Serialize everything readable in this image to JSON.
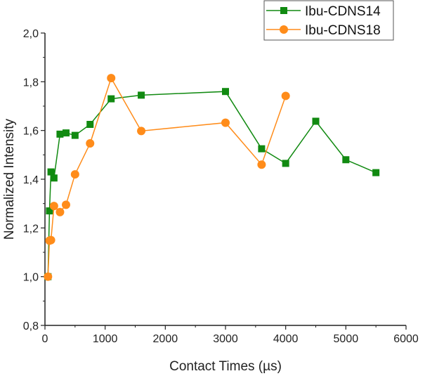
{
  "chart_data": {
    "type": "line",
    "title": "",
    "xlabel": "Contact Times (µs)",
    "ylabel": "Normalized Intensity",
    "xlim": [
      0,
      6000
    ],
    "ylim": [
      0.8,
      2.0
    ],
    "xticks": [
      0,
      1000,
      2000,
      3000,
      4000,
      5000,
      6000
    ],
    "xtick_labels": [
      "0",
      "1000",
      "2000",
      "3000",
      "4000",
      "5000",
      "6000"
    ],
    "yticks": [
      0.8,
      1.0,
      1.2,
      1.4,
      1.6,
      1.8,
      2.0
    ],
    "ytick_labels": [
      "0,8",
      "1,0",
      "1,2",
      "1,4",
      "1,6",
      "1,8",
      "2,0"
    ],
    "grid": false,
    "legend_position": "top-right",
    "series": [
      {
        "name": "Ibu-CDNS14",
        "color": "#118a11",
        "marker": "square",
        "x": [
          50,
          75,
          100,
          150,
          250,
          350,
          500,
          750,
          1100,
          1600,
          3000,
          3600,
          4000,
          4500,
          5000,
          5500
        ],
        "y": [
          1.0,
          1.27,
          1.43,
          1.405,
          1.585,
          1.59,
          1.58,
          1.625,
          1.73,
          1.745,
          1.76,
          1.525,
          1.465,
          1.638,
          1.48,
          1.427
        ]
      },
      {
        "name": "Ibu-CDNS18",
        "color": "#ff8c1a",
        "marker": "circle",
        "x": [
          50,
          75,
          100,
          150,
          250,
          350,
          500,
          750,
          1100,
          1600,
          3000,
          3600,
          4000
        ],
        "y": [
          1.0,
          1.148,
          1.15,
          1.29,
          1.265,
          1.295,
          1.42,
          1.547,
          1.815,
          1.598,
          1.632,
          1.46,
          1.742
        ]
      }
    ]
  }
}
